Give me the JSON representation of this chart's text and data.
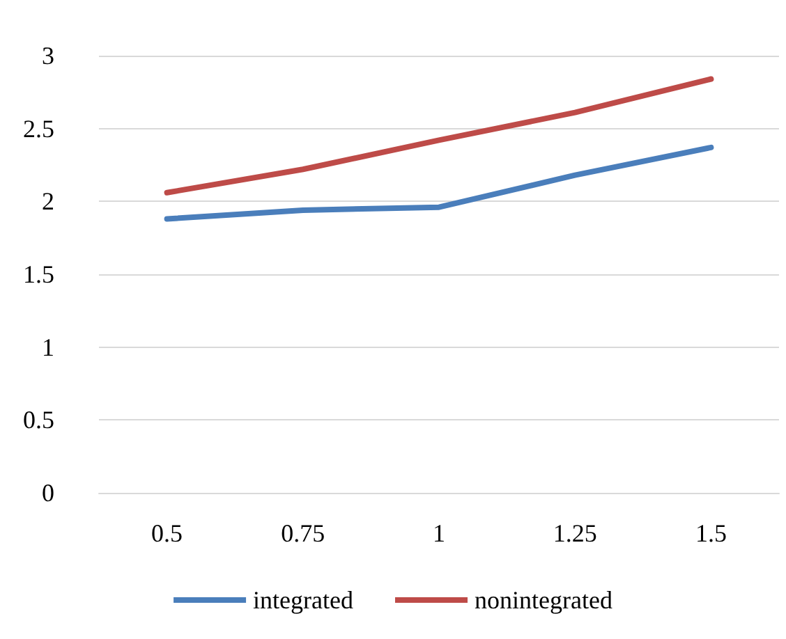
{
  "chart_data": {
    "type": "line",
    "categories": [
      "0.5",
      "0.75",
      "1",
      "1.25",
      "1.5"
    ],
    "series": [
      {
        "name": "integrated",
        "color": "#4a7ebb",
        "values": [
          1.88,
          1.94,
          1.96,
          2.18,
          2.37
        ]
      },
      {
        "name": "nonintegrated",
        "color": "#be4b48",
        "values": [
          2.06,
          2.22,
          2.42,
          2.61,
          2.84
        ]
      }
    ],
    "ylim": [
      0,
      3
    ],
    "yticks": [
      0,
      0.5,
      1,
      1.5,
      2,
      2.5,
      3
    ],
    "grid": "y",
    "legend": "bottom",
    "marker": "none",
    "line_style": "solid"
  }
}
